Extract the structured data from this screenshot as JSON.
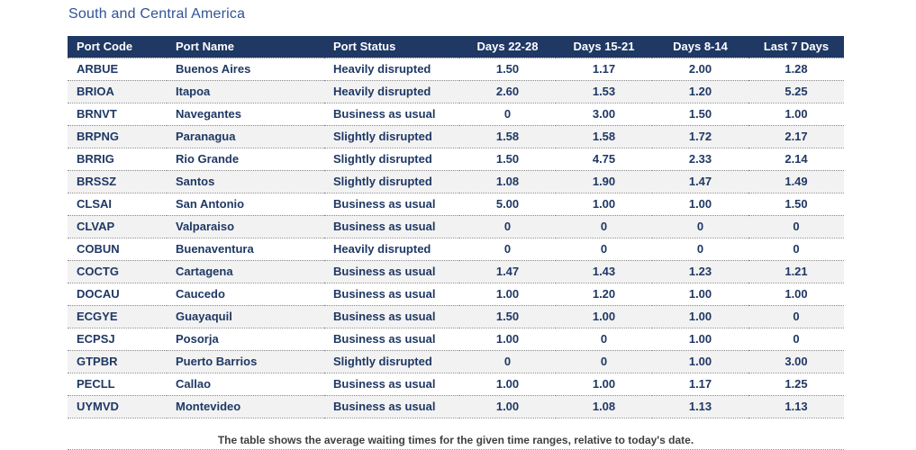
{
  "chart_data": {
    "type": "table",
    "title": "South and Central America",
    "columns": [
      "Port Code",
      "Port Name",
      "Port Status",
      "Days 22-28",
      "Days 15-21",
      "Days 8-14",
      "Last 7 Days"
    ],
    "rows": [
      [
        "ARBUE",
        "Buenos Aires",
        "Heavily disrupted",
        "1.50",
        "1.17",
        "2.00",
        "1.28"
      ],
      [
        "BRIOA",
        "Itapoa",
        "Heavily disrupted",
        "2.60",
        "1.53",
        "1.20",
        "5.25"
      ],
      [
        "BRNVT",
        "Navegantes",
        "Business as usual",
        "0",
        "3.00",
        "1.50",
        "1.00"
      ],
      [
        "BRPNG",
        "Paranagua",
        "Slightly disrupted",
        "1.58",
        "1.58",
        "1.72",
        "2.17"
      ],
      [
        "BRRIG",
        "Rio Grande",
        "Slightly disrupted",
        "1.50",
        "4.75",
        "2.33",
        "2.14"
      ],
      [
        "BRSSZ",
        "Santos",
        "Slightly disrupted",
        "1.08",
        "1.90",
        "1.47",
        "1.49"
      ],
      [
        "CLSAI",
        "San Antonio",
        "Business as usual",
        "5.00",
        "1.00",
        "1.00",
        "1.50"
      ],
      [
        "CLVAP",
        "Valparaiso",
        "Business as usual",
        "0",
        "0",
        "0",
        "0"
      ],
      [
        "COBUN",
        "Buenaventura",
        "Heavily disrupted",
        "0",
        "0",
        "0",
        "0"
      ],
      [
        "COCTG",
        "Cartagena",
        "Business as usual",
        "1.47",
        "1.43",
        "1.23",
        "1.21"
      ],
      [
        "DOCAU",
        "Caucedo",
        "Business as usual",
        "1.00",
        "1.20",
        "1.00",
        "1.00"
      ],
      [
        "ECGYE",
        "Guayaquil",
        "Business as usual",
        "1.50",
        "1.00",
        "1.00",
        "0"
      ],
      [
        "ECPSJ",
        "Posorja",
        "Business as usual",
        "1.00",
        "0",
        "1.00",
        "0"
      ],
      [
        "GTPBR",
        "Puerto Barrios",
        "Slightly disrupted",
        "0",
        "0",
        "1.00",
        "3.00"
      ],
      [
        "PECLL",
        "Callao",
        "Business as usual",
        "1.00",
        "1.00",
        "1.17",
        "1.25"
      ],
      [
        "UYMVD",
        "Montevideo",
        "Business as usual",
        "1.00",
        "1.08",
        "1.13",
        "1.13"
      ]
    ],
    "footnote": "The table shows the average waiting times for the given time ranges, relative to today's date.",
    "layout_hints": {
      "alternating_rows": true,
      "numeric_columns_align": "center",
      "row_separator": "dotted"
    }
  },
  "colors": {
    "header_bg": "#1F3864",
    "header_text": "#FFFFFF",
    "cell_text": "#1F3864",
    "title_text": "#2F5496",
    "alt_row_bg": "#F2F2F2",
    "footnote_text": "#3F3F3F",
    "divider": "#8C8C8C"
  }
}
